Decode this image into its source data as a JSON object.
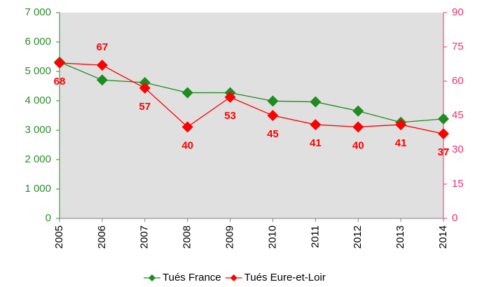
{
  "chart_data": {
    "type": "line",
    "categories": [
      "2005",
      "2006",
      "2007",
      "2008",
      "2009",
      "2010",
      "2011",
      "2012",
      "2013",
      "2014"
    ],
    "series": [
      {
        "name": "Tués France",
        "color": "#1e8c1e",
        "values": [
          5318,
          4709,
          4620,
          4275,
          4273,
          3992,
          3963,
          3653,
          3268,
          3384
        ]
      },
      {
        "name": "Tués Eure-et-Loir",
        "color": "#ff0000",
        "axis": "y2",
        "values": [
          68,
          67,
          57,
          40,
          53,
          45,
          41,
          40,
          41,
          37
        ]
      }
    ],
    "ylim": [
      0,
      7000
    ],
    "yticks": [
      0,
      {
        "value": 1000,
        "label": "1 000"
      },
      {
        "value": 2000,
        "label": "2 000"
      },
      {
        "value": 3000,
        "label": "3 000"
      },
      {
        "value": 4000,
        "label": "4 000"
      },
      {
        "value": 5000,
        "label": "5 000"
      },
      {
        "value": 6000,
        "label": "6 000"
      },
      {
        "value": 7000,
        "label": "7 000"
      }
    ],
    "y2lim": [
      0,
      90
    ],
    "y2ticks": [
      0,
      15,
      30,
      45,
      60,
      75,
      90
    ],
    "axis_colors": {
      "y": "#2e8b2e",
      "y2": "#e8336e"
    },
    "plot_background": "#e0e0e0",
    "legend": "bottom"
  }
}
